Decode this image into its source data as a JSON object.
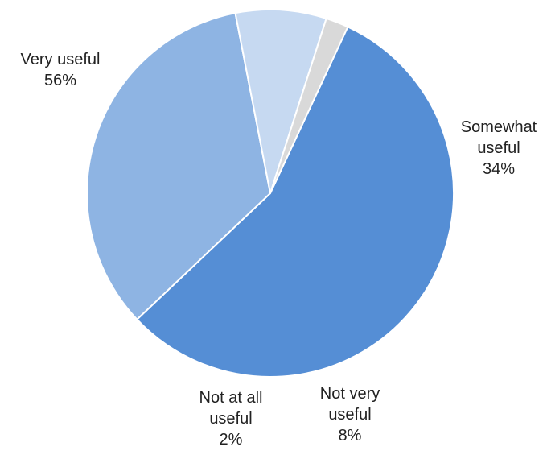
{
  "chart_data": {
    "type": "pie",
    "title": "",
    "slices": [
      {
        "label_lines": [
          "Very useful",
          "56%"
        ],
        "value": 56,
        "color": "#558ed5"
      },
      {
        "label_lines": [
          "Somewhat",
          "useful",
          "34%"
        ],
        "value": 34,
        "color": "#8eb4e3"
      },
      {
        "label_lines": [
          "Not very",
          "useful",
          "8%"
        ],
        "value": 8,
        "color": "#c6d9f1"
      },
      {
        "label_lines": [
          "Not at all",
          "useful",
          "2%"
        ],
        "value": 2,
        "color": "#d9d9d9"
      }
    ],
    "start_angle_deg": 25,
    "direction": "clockwise",
    "legend": "none"
  }
}
